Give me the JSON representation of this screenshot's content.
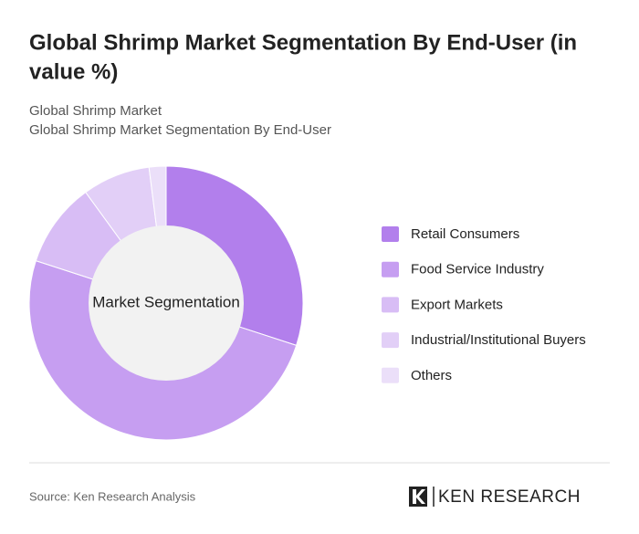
{
  "chart_data": {
    "type": "donut",
    "title": [
      "Global Shrimp Market Segmentation By End-User (in",
      "value %)"
    ],
    "subtitle": [
      "Global Shrimp Market",
      "Global Shrimp Market Segmentation By End-User"
    ],
    "center_label": "Market Segmentation",
    "categories": [
      "Retail Consumers",
      "Food Service Industry",
      "Export Markets",
      "Industrial/Institutional Buyers",
      "Others"
    ],
    "values": [
      30,
      50,
      10,
      8,
      2
    ],
    "colors": [
      "#b27fec",
      "#c69ef1",
      "#d8bdf5",
      "#e2cff7",
      "#ebdff9"
    ],
    "source": "Source: Ken Research Analysis",
    "logo": "KEN RESEARCH"
  }
}
